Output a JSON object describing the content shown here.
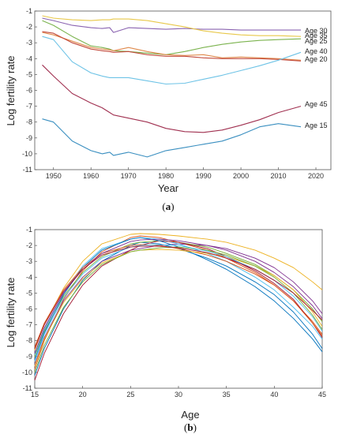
{
  "chart_data": [
    {
      "type": "line",
      "caption_open": "(",
      "caption_letter": "a",
      "caption_close": ")",
      "xlabel": "Year",
      "ylabel": "Log fertility rate",
      "xlim": [
        1945,
        2024
      ],
      "ylim": [
        -11,
        -1
      ],
      "xticks": [
        1950,
        1960,
        1970,
        1980,
        1990,
        2000,
        2010,
        2020
      ],
      "yticks": [
        -1,
        -2,
        -3,
        -4,
        -5,
        -6,
        -7,
        -8,
        -9,
        -10,
        -11
      ],
      "grid": false,
      "legend": "inline labels at right end of lines",
      "x": [
        1947,
        1950,
        1955,
        1960,
        1963,
        1965,
        1966,
        1970,
        1975,
        1980,
        1985,
        1990,
        1995,
        2000,
        2005,
        2010,
        2016
      ],
      "series": [
        {
          "name": "Age 30",
          "color": "#8a63b0",
          "values": [
            -1.45,
            -1.6,
            -1.9,
            -2.05,
            -2.1,
            -2.05,
            -2.35,
            -2.05,
            -2.1,
            -2.15,
            -2.1,
            -2.15,
            -2.15,
            -2.2,
            -2.2,
            -2.2,
            -2.2
          ]
        },
        {
          "name": "Age 35",
          "color": "#e8c84a",
          "values": [
            -1.3,
            -1.45,
            -1.55,
            -1.6,
            -1.55,
            -1.55,
            -1.5,
            -1.5,
            -1.6,
            -1.8,
            -2.0,
            -2.25,
            -2.4,
            -2.5,
            -2.55,
            -2.55,
            -2.6
          ]
        },
        {
          "name": "Age 25",
          "color": "#7bb34e",
          "values": [
            -1.6,
            -1.9,
            -2.6,
            -3.2,
            -3.3,
            -3.4,
            -3.5,
            -3.55,
            -3.65,
            -3.75,
            -3.55,
            -3.3,
            -3.1,
            -2.95,
            -2.85,
            -2.8,
            -2.75
          ]
        },
        {
          "name": "Age 40",
          "color": "#e08b4e",
          "values": [
            -2.35,
            -2.5,
            -2.9,
            -3.3,
            -3.4,
            -3.45,
            -3.5,
            -3.3,
            -3.55,
            -3.75,
            -3.8,
            -3.75,
            -3.95,
            -3.9,
            -3.95,
            -4.0,
            -4.1
          ]
        },
        {
          "name": "Age 20",
          "color": "#c24a3c",
          "values": [
            -2.3,
            -2.4,
            -3.0,
            -3.4,
            -3.5,
            -3.55,
            -3.6,
            -3.55,
            -3.75,
            -3.85,
            -3.85,
            -3.95,
            -4.0,
            -4.0,
            -4.0,
            -4.05,
            -4.15
          ]
        },
        {
          "name": "",
          "color": "#6ec3e6",
          "values": [
            -2.6,
            -2.8,
            -4.2,
            -4.9,
            -5.1,
            -5.2,
            -5.2,
            -5.2,
            -5.4,
            -5.6,
            -5.55,
            -5.3,
            -5.05,
            -4.75,
            -4.45,
            -4.1,
            -3.6
          ]
        },
        {
          "name": "Age 45",
          "color": "#a03050",
          "values": [
            -4.4,
            -5.1,
            -6.2,
            -6.8,
            -7.1,
            -7.4,
            -7.55,
            -7.75,
            -8.0,
            -8.4,
            -8.6,
            -8.65,
            -8.5,
            -8.2,
            -7.85,
            -7.4,
            -7.0
          ]
        },
        {
          "name": "Age 15",
          "color": "#3a8fc0",
          "values": [
            -7.8,
            -8.0,
            -9.2,
            -9.8,
            -10.0,
            -9.9,
            -10.1,
            -9.9,
            -10.2,
            -9.8,
            -9.6,
            -9.4,
            -9.2,
            -8.8,
            -8.3,
            -8.1,
            -8.3
          ]
        }
      ]
    },
    {
      "type": "line",
      "caption_open": "(",
      "caption_letter": "b",
      "caption_close": ")",
      "xlabel": "Age",
      "ylabel": "Log fertility rate",
      "xlim": [
        15,
        45
      ],
      "ylim": [
        -11,
        -1
      ],
      "xticks": [
        15,
        20,
        25,
        30,
        35,
        40,
        45
      ],
      "yticks": [
        -1,
        -2,
        -3,
        -4,
        -5,
        -6,
        -7,
        -8,
        -9,
        -10,
        -11
      ],
      "grid": false,
      "legend": "none",
      "x": [
        15,
        16,
        18,
        20,
        22,
        25,
        26,
        28,
        30,
        33,
        35,
        38,
        40,
        42,
        44,
        45
      ],
      "series": [
        {
          "name": "",
          "color": "#0072bd",
          "values": [
            -10.2,
            -8.5,
            -6.0,
            -4.2,
            -3.0,
            -2.0,
            -1.8,
            -1.9,
            -2.2,
            -2.8,
            -3.3,
            -4.3,
            -5.1,
            -6.2,
            -7.6,
            -8.5
          ]
        },
        {
          "name": "",
          "color": "#d95319",
          "values": [
            -9.8,
            -8.0,
            -5.4,
            -3.6,
            -2.4,
            -1.5,
            -1.4,
            -1.5,
            -1.8,
            -2.3,
            -2.8,
            -3.7,
            -4.5,
            -5.5,
            -6.8,
            -7.6
          ]
        },
        {
          "name": "",
          "color": "#edb120",
          "values": [
            -8.6,
            -7.0,
            -4.7,
            -3.0,
            -1.9,
            -1.3,
            -1.25,
            -1.3,
            -1.4,
            -1.6,
            -1.8,
            -2.3,
            -2.8,
            -3.4,
            -4.3,
            -4.8
          ]
        },
        {
          "name": "",
          "color": "#7e2f8e",
          "values": [
            -9.5,
            -7.8,
            -5.5,
            -4.0,
            -3.0,
            -2.3,
            -2.2,
            -2.0,
            -1.9,
            -2.0,
            -2.2,
            -2.8,
            -3.4,
            -4.3,
            -5.5,
            -6.3
          ]
        },
        {
          "name": "",
          "color": "#77ac30",
          "values": [
            -9.0,
            -7.4,
            -5.2,
            -3.7,
            -2.7,
            -1.9,
            -1.8,
            -1.7,
            -1.8,
            -2.1,
            -2.5,
            -3.2,
            -3.9,
            -4.8,
            -6.0,
            -6.8
          ]
        },
        {
          "name": "",
          "color": "#4dbeee",
          "values": [
            -8.9,
            -7.3,
            -5.0,
            -3.3,
            -2.2,
            -1.6,
            -1.5,
            -1.6,
            -1.9,
            -2.5,
            -3.0,
            -4.0,
            -4.8,
            -5.9,
            -7.1,
            -7.9
          ]
        },
        {
          "name": "",
          "color": "#a2142f",
          "values": [
            -10.5,
            -8.8,
            -6.3,
            -4.5,
            -3.3,
            -2.3,
            -2.0,
            -1.7,
            -1.8,
            -2.2,
            -2.7,
            -3.6,
            -4.4,
            -5.4,
            -6.9,
            -7.8
          ]
        },
        {
          "name": "",
          "color": "#0072bd",
          "values": [
            -9.2,
            -7.5,
            -5.1,
            -3.4,
            -2.3,
            -1.6,
            -1.5,
            -1.7,
            -2.1,
            -2.9,
            -3.5,
            -4.6,
            -5.5,
            -6.6,
            -7.9,
            -8.7
          ]
        },
        {
          "name": "",
          "color": "#d95319",
          "values": [
            -8.4,
            -6.9,
            -4.8,
            -3.4,
            -2.5,
            -2.0,
            -1.95,
            -2.0,
            -2.2,
            -2.6,
            -3.0,
            -3.8,
            -4.5,
            -5.5,
            -6.9,
            -7.7
          ]
        },
        {
          "name": "",
          "color": "#edb120",
          "values": [
            -9.6,
            -7.9,
            -5.6,
            -4.1,
            -3.1,
            -2.4,
            -2.3,
            -2.25,
            -2.3,
            -2.5,
            -2.7,
            -3.3,
            -3.9,
            -4.8,
            -6.2,
            -7.1
          ]
        },
        {
          "name": "",
          "color": "#7e2f8e",
          "values": [
            -8.8,
            -7.2,
            -5.0,
            -3.5,
            -2.5,
            -1.75,
            -1.65,
            -1.6,
            -1.7,
            -2.0,
            -2.3,
            -3.0,
            -3.7,
            -4.6,
            -5.8,
            -6.6
          ]
        },
        {
          "name": "",
          "color": "#77ac30",
          "values": [
            -10.0,
            -8.3,
            -5.9,
            -4.3,
            -3.2,
            -2.4,
            -2.3,
            -2.15,
            -2.1,
            -2.3,
            -2.6,
            -3.3,
            -4.0,
            -5.0,
            -6.4,
            -7.3
          ]
        },
        {
          "name": "",
          "color": "#4dbeee",
          "values": [
            -9.3,
            -7.6,
            -5.3,
            -3.8,
            -2.8,
            -2.1,
            -2.0,
            -1.95,
            -2.0,
            -2.35,
            -2.7,
            -3.5,
            -4.2,
            -5.2,
            -6.5,
            -7.4
          ]
        },
        {
          "name": "",
          "color": "#a2142f",
          "values": [
            -8.5,
            -7.0,
            -4.9,
            -3.5,
            -2.6,
            -2.1,
            -2.05,
            -2.05,
            -2.15,
            -2.45,
            -2.8,
            -3.5,
            -4.2,
            -5.0,
            -6.1,
            -6.7
          ]
        }
      ]
    }
  ]
}
